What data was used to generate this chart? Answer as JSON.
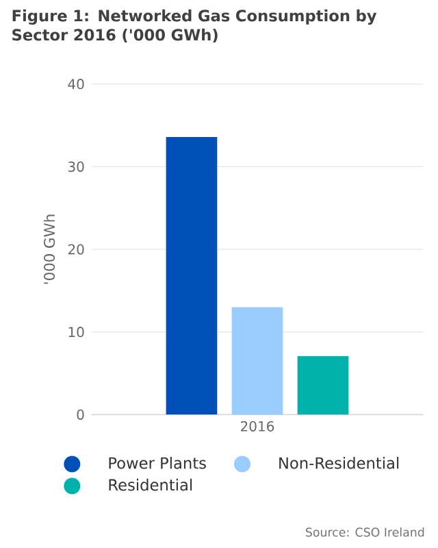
{
  "chart_data": {
    "type": "bar",
    "title": "Figure 1: Networked Gas Consumption by Sector 2016 ('000 GWh)",
    "ylabel": "'000 GWh",
    "categories": [
      "2016"
    ],
    "series": [
      {
        "name": "Power Plants",
        "color": "#0050b8",
        "values": [
          33.6
        ]
      },
      {
        "name": "Non-Residential",
        "color": "#99ccff",
        "values": [
          13.0
        ]
      },
      {
        "name": "Residential",
        "color": "#00b2a9",
        "values": [
          7.1
        ]
      }
    ],
    "ylim": [
      0,
      40
    ],
    "yticks": [
      0,
      10,
      20,
      30,
      40
    ],
    "grid": "y",
    "legend": "bottom",
    "annotations": [
      "Source: CSO Ireland"
    ]
  }
}
